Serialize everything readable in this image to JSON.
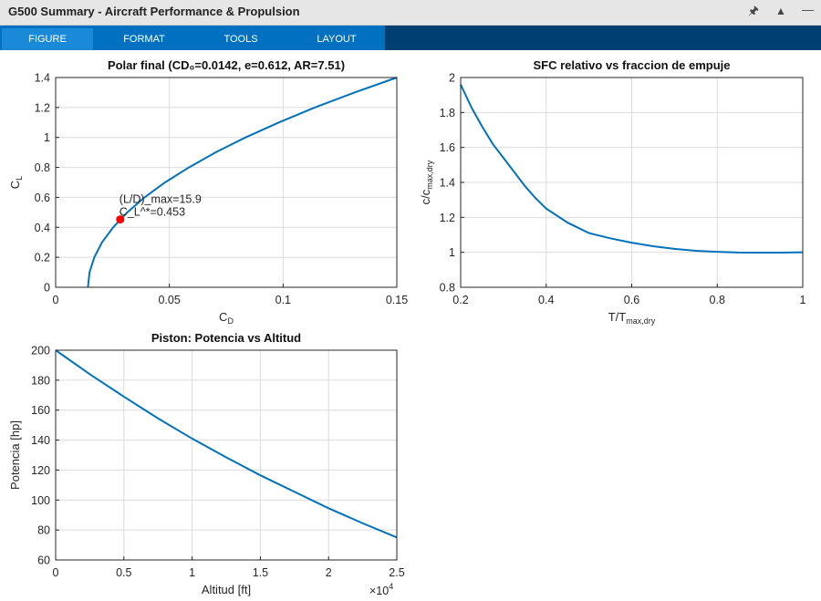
{
  "window": {
    "title": "G500 Summary - Aircraft Performance & Propulsion",
    "icons": [
      "pin-icon",
      "undock-icon",
      "minimize-icon"
    ]
  },
  "toolstrip": {
    "tabs": [
      {
        "label": "FIGURE",
        "active": true
      },
      {
        "label": "FORMAT"
      },
      {
        "label": "TOOLS"
      },
      {
        "label": "LAYOUT"
      }
    ]
  },
  "colors": {
    "line": "#0072bd",
    "marker": "#ff0000",
    "grid": "#dcdcdc",
    "toolstrip": "#0070c0",
    "toolstrip_dark": "#003f72"
  },
  "chart_data": [
    {
      "type": "line",
      "title": "Polar  final  (CD₀=0.0142,  e=0.612,  AR=7.51)",
      "xlabel": {
        "main": "C",
        "sub": "D"
      },
      "ylabel": {
        "main": "C",
        "sub": "L"
      },
      "xlim": [
        0,
        0.15
      ],
      "ylim": [
        0,
        1.4
      ],
      "xticks": [
        0,
        0.05,
        0.1,
        0.15
      ],
      "xtick_labels": [
        "0",
        "0.05",
        "0.1",
        "0.15"
      ],
      "yticks": [
        0,
        0.2,
        0.4,
        0.6,
        0.8,
        1,
        1.2,
        1.4
      ],
      "ytick_labels": [
        "0",
        "0.2",
        "0.4",
        "0.6",
        "0.8",
        "1",
        "1.2",
        "1.4"
      ],
      "grid": true,
      "series": [
        {
          "name": "polar",
          "model": "CD = 0.0142 + 0.0693*CL^2",
          "x": [
            0.0142,
            0.0149,
            0.017,
            0.0204,
            0.0253,
            0.0315,
            0.0391,
            0.0481,
            0.0586,
            0.0703,
            0.0835,
            0.0981,
            0.114,
            0.1314,
            0.15
          ],
          "y": [
            0,
            0.1,
            0.2,
            0.3,
            0.4,
            0.5,
            0.6,
            0.7,
            0.8,
            0.9,
            1.0,
            1.1,
            1.2,
            1.3,
            1.4
          ]
        }
      ],
      "points": [
        {
          "x": 0.0284,
          "y": 0.453
        }
      ],
      "annotations": [
        "(L/D)_max=15.9",
        "C_L^*=0.453"
      ]
    },
    {
      "type": "line",
      "title": "SFC relativo vs fraccion de empuje",
      "xlabel": {
        "main": "T/T",
        "sub": "max,dry"
      },
      "ylabel": {
        "main": "c/c",
        "sub": "max,dry"
      },
      "xlim": [
        0.2,
        1
      ],
      "ylim": [
        0.8,
        2
      ],
      "xticks": [
        0.2,
        0.4,
        0.6,
        0.8,
        1
      ],
      "xtick_labels": [
        "0.2",
        "0.4",
        "0.6",
        "0.8",
        "1"
      ],
      "yticks": [
        0.8,
        1,
        1.2,
        1.4,
        1.6,
        1.8,
        2
      ],
      "ytick_labels": [
        "0.8",
        "1",
        "1.2",
        "1.4",
        "1.6",
        "1.8",
        "2"
      ],
      "grid": true,
      "series": [
        {
          "name": "sfc",
          "x": [
            0.2,
            0.225,
            0.25,
            0.275,
            0.3,
            0.325,
            0.35,
            0.375,
            0.4,
            0.45,
            0.5,
            0.55,
            0.6,
            0.65,
            0.7,
            0.75,
            0.8,
            0.85,
            0.9,
            0.95,
            1.0
          ],
          "y": [
            1.96,
            1.83,
            1.72,
            1.62,
            1.54,
            1.46,
            1.38,
            1.31,
            1.25,
            1.17,
            1.11,
            1.08,
            1.055,
            1.035,
            1.02,
            1.009,
            1.003,
            0.999,
            0.998,
            0.998,
            1.0
          ]
        }
      ]
    },
    {
      "type": "line",
      "title": "Piston: Potencia vs Altitud",
      "xlabel": {
        "main": "Altitud [ft]",
        "sub": ""
      },
      "ylabel": {
        "main": "Potencia [hp]",
        "sub": ""
      },
      "xlim": [
        0,
        25000
      ],
      "ylim": [
        60,
        200
      ],
      "xticks": [
        0,
        5000,
        10000,
        15000,
        20000,
        25000
      ],
      "xtick_labels": [
        "0",
        "0.5",
        "1",
        "1.5",
        "2",
        "2.5"
      ],
      "x_exponent": {
        "base": "×10",
        "exp": "4"
      },
      "yticks": [
        60,
        80,
        100,
        120,
        140,
        160,
        180,
        200
      ],
      "ytick_labels": [
        "60",
        "80",
        "100",
        "120",
        "140",
        "160",
        "180",
        "200"
      ],
      "grid": true,
      "series": [
        {
          "name": "power",
          "x": [
            0,
            2500,
            5000,
            7500,
            10000,
            12500,
            15000,
            17500,
            20000,
            22500,
            25000
          ],
          "y": [
            200,
            184,
            169,
            154.5,
            141,
            128.5,
            116.5,
            105.5,
            94.5,
            84.5,
            75
          ]
        }
      ]
    }
  ]
}
